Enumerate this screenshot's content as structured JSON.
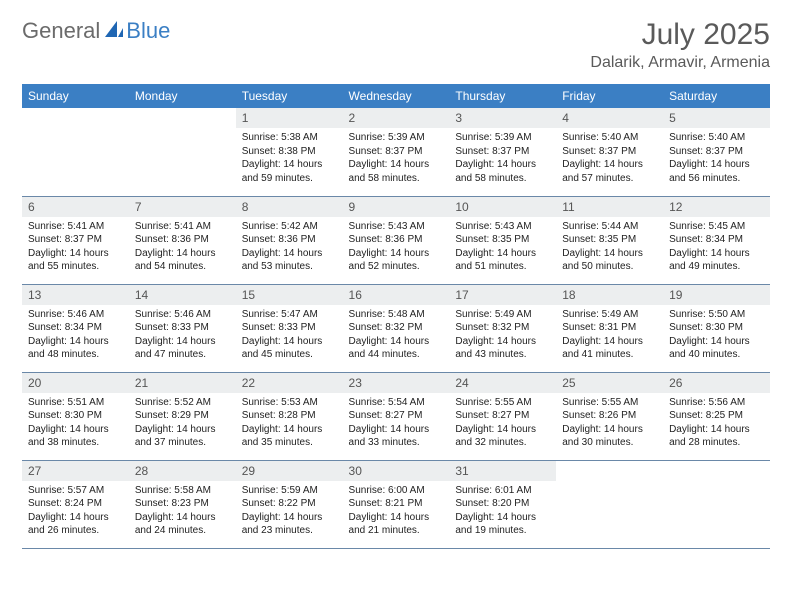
{
  "brand": {
    "general": "General",
    "blue": "Blue"
  },
  "title": "July 2025",
  "location": "Dalarik, Armavir, Armenia",
  "colors": {
    "header_bg": "#3b7fc4",
    "header_fg": "#ffffff",
    "daynum_bg": "#eceeef",
    "rule": "#6a88a8"
  },
  "weekdays": [
    "Sunday",
    "Monday",
    "Tuesday",
    "Wednesday",
    "Thursday",
    "Friday",
    "Saturday"
  ],
  "weeks": [
    [
      null,
      null,
      {
        "n": "1",
        "sr": "Sunrise: 5:38 AM",
        "ss": "Sunset: 8:38 PM",
        "dl": "Daylight: 14 hours and 59 minutes."
      },
      {
        "n": "2",
        "sr": "Sunrise: 5:39 AM",
        "ss": "Sunset: 8:37 PM",
        "dl": "Daylight: 14 hours and 58 minutes."
      },
      {
        "n": "3",
        "sr": "Sunrise: 5:39 AM",
        "ss": "Sunset: 8:37 PM",
        "dl": "Daylight: 14 hours and 58 minutes."
      },
      {
        "n": "4",
        "sr": "Sunrise: 5:40 AM",
        "ss": "Sunset: 8:37 PM",
        "dl": "Daylight: 14 hours and 57 minutes."
      },
      {
        "n": "5",
        "sr": "Sunrise: 5:40 AM",
        "ss": "Sunset: 8:37 PM",
        "dl": "Daylight: 14 hours and 56 minutes."
      }
    ],
    [
      {
        "n": "6",
        "sr": "Sunrise: 5:41 AM",
        "ss": "Sunset: 8:37 PM",
        "dl": "Daylight: 14 hours and 55 minutes."
      },
      {
        "n": "7",
        "sr": "Sunrise: 5:41 AM",
        "ss": "Sunset: 8:36 PM",
        "dl": "Daylight: 14 hours and 54 minutes."
      },
      {
        "n": "8",
        "sr": "Sunrise: 5:42 AM",
        "ss": "Sunset: 8:36 PM",
        "dl": "Daylight: 14 hours and 53 minutes."
      },
      {
        "n": "9",
        "sr": "Sunrise: 5:43 AM",
        "ss": "Sunset: 8:36 PM",
        "dl": "Daylight: 14 hours and 52 minutes."
      },
      {
        "n": "10",
        "sr": "Sunrise: 5:43 AM",
        "ss": "Sunset: 8:35 PM",
        "dl": "Daylight: 14 hours and 51 minutes."
      },
      {
        "n": "11",
        "sr": "Sunrise: 5:44 AM",
        "ss": "Sunset: 8:35 PM",
        "dl": "Daylight: 14 hours and 50 minutes."
      },
      {
        "n": "12",
        "sr": "Sunrise: 5:45 AM",
        "ss": "Sunset: 8:34 PM",
        "dl": "Daylight: 14 hours and 49 minutes."
      }
    ],
    [
      {
        "n": "13",
        "sr": "Sunrise: 5:46 AM",
        "ss": "Sunset: 8:34 PM",
        "dl": "Daylight: 14 hours and 48 minutes."
      },
      {
        "n": "14",
        "sr": "Sunrise: 5:46 AM",
        "ss": "Sunset: 8:33 PM",
        "dl": "Daylight: 14 hours and 47 minutes."
      },
      {
        "n": "15",
        "sr": "Sunrise: 5:47 AM",
        "ss": "Sunset: 8:33 PM",
        "dl": "Daylight: 14 hours and 45 minutes."
      },
      {
        "n": "16",
        "sr": "Sunrise: 5:48 AM",
        "ss": "Sunset: 8:32 PM",
        "dl": "Daylight: 14 hours and 44 minutes."
      },
      {
        "n": "17",
        "sr": "Sunrise: 5:49 AM",
        "ss": "Sunset: 8:32 PM",
        "dl": "Daylight: 14 hours and 43 minutes."
      },
      {
        "n": "18",
        "sr": "Sunrise: 5:49 AM",
        "ss": "Sunset: 8:31 PM",
        "dl": "Daylight: 14 hours and 41 minutes."
      },
      {
        "n": "19",
        "sr": "Sunrise: 5:50 AM",
        "ss": "Sunset: 8:30 PM",
        "dl": "Daylight: 14 hours and 40 minutes."
      }
    ],
    [
      {
        "n": "20",
        "sr": "Sunrise: 5:51 AM",
        "ss": "Sunset: 8:30 PM",
        "dl": "Daylight: 14 hours and 38 minutes."
      },
      {
        "n": "21",
        "sr": "Sunrise: 5:52 AM",
        "ss": "Sunset: 8:29 PM",
        "dl": "Daylight: 14 hours and 37 minutes."
      },
      {
        "n": "22",
        "sr": "Sunrise: 5:53 AM",
        "ss": "Sunset: 8:28 PM",
        "dl": "Daylight: 14 hours and 35 minutes."
      },
      {
        "n": "23",
        "sr": "Sunrise: 5:54 AM",
        "ss": "Sunset: 8:27 PM",
        "dl": "Daylight: 14 hours and 33 minutes."
      },
      {
        "n": "24",
        "sr": "Sunrise: 5:55 AM",
        "ss": "Sunset: 8:27 PM",
        "dl": "Daylight: 14 hours and 32 minutes."
      },
      {
        "n": "25",
        "sr": "Sunrise: 5:55 AM",
        "ss": "Sunset: 8:26 PM",
        "dl": "Daylight: 14 hours and 30 minutes."
      },
      {
        "n": "26",
        "sr": "Sunrise: 5:56 AM",
        "ss": "Sunset: 8:25 PM",
        "dl": "Daylight: 14 hours and 28 minutes."
      }
    ],
    [
      {
        "n": "27",
        "sr": "Sunrise: 5:57 AM",
        "ss": "Sunset: 8:24 PM",
        "dl": "Daylight: 14 hours and 26 minutes."
      },
      {
        "n": "28",
        "sr": "Sunrise: 5:58 AM",
        "ss": "Sunset: 8:23 PM",
        "dl": "Daylight: 14 hours and 24 minutes."
      },
      {
        "n": "29",
        "sr": "Sunrise: 5:59 AM",
        "ss": "Sunset: 8:22 PM",
        "dl": "Daylight: 14 hours and 23 minutes."
      },
      {
        "n": "30",
        "sr": "Sunrise: 6:00 AM",
        "ss": "Sunset: 8:21 PM",
        "dl": "Daylight: 14 hours and 21 minutes."
      },
      {
        "n": "31",
        "sr": "Sunrise: 6:01 AM",
        "ss": "Sunset: 8:20 PM",
        "dl": "Daylight: 14 hours and 19 minutes."
      },
      null,
      null
    ]
  ]
}
